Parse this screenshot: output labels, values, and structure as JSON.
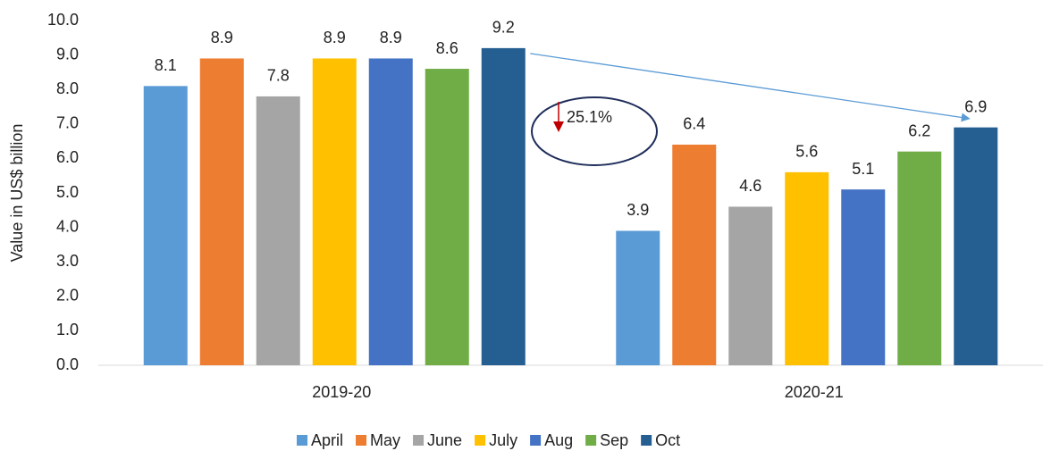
{
  "chart_data": {
    "type": "bar",
    "categories": [
      "2019-20",
      "2020-21"
    ],
    "series": [
      {
        "name": "April",
        "color": "#5b9bd5",
        "values": [
          8.1,
          3.9
        ]
      },
      {
        "name": "May",
        "color": "#ed7d31",
        "values": [
          8.9,
          6.4
        ]
      },
      {
        "name": "June",
        "color": "#a5a5a5",
        "values": [
          7.8,
          4.6
        ]
      },
      {
        "name": "July",
        "color": "#ffc000",
        "values": [
          8.9,
          5.6
        ]
      },
      {
        "name": "Aug",
        "color": "#4472c4",
        "values": [
          8.9,
          5.1
        ]
      },
      {
        "name": "Sep",
        "color": "#70ad47",
        "values": [
          8.6,
          6.2
        ]
      },
      {
        "name": "Oct",
        "color": "#255e91",
        "values": [
          9.2,
          6.9
        ]
      }
    ],
    "ylabel": "Value in US$ billion",
    "ylim": [
      0,
      10
    ],
    "yticks": [
      {
        "value": 0,
        "label": "0.0"
      },
      {
        "value": 1,
        "label": "1.0"
      },
      {
        "value": 2,
        "label": "2.0"
      },
      {
        "value": 3,
        "label": "3.0"
      },
      {
        "value": 4,
        "label": "4.0"
      },
      {
        "value": 5,
        "label": "5.0"
      },
      {
        "value": 6,
        "label": "6.0"
      },
      {
        "value": 7,
        "label": "7.0"
      },
      {
        "value": 8,
        "label": "8.0"
      },
      {
        "value": 9,
        "label": "9.0"
      },
      {
        "value": 10,
        "label": "10.0"
      }
    ],
    "annotation": "25.1%",
    "grid": false,
    "legend": "bottom"
  }
}
